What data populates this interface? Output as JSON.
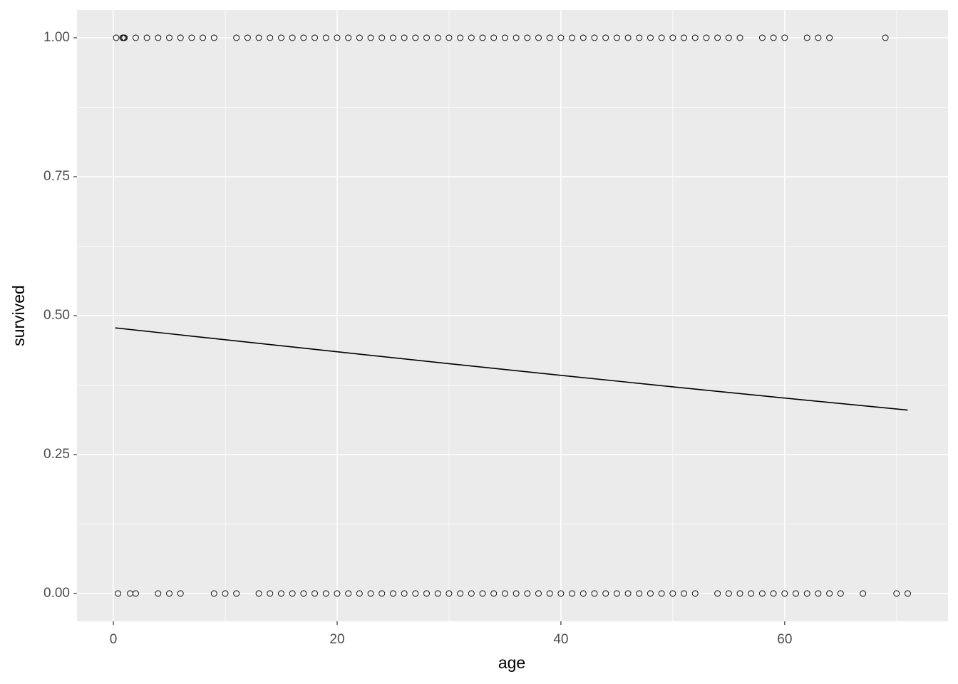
{
  "chart_data": {
    "type": "scatter",
    "x_label": "age",
    "y_label": "survived",
    "x": [
      0.25,
      0.83,
      0.92,
      1,
      2,
      3,
      4,
      5,
      6,
      7,
      8,
      9,
      11,
      12,
      13,
      14,
      15,
      16,
      17,
      18,
      19,
      20,
      21,
      22,
      23,
      24,
      25,
      26,
      27,
      28,
      29,
      30,
      31,
      32,
      33,
      34,
      35,
      36,
      37,
      38,
      39,
      40,
      41,
      42,
      43,
      44,
      45,
      46,
      47,
      48,
      49,
      50,
      51,
      52,
      53,
      54,
      55,
      56,
      58,
      59,
      60,
      62,
      63,
      64,
      69,
      0.42,
      1.5,
      2,
      4,
      5,
      6,
      9,
      10,
      11,
      13,
      14,
      15,
      16,
      17,
      18,
      19,
      20,
      21,
      22,
      23,
      24,
      25,
      26,
      27,
      28,
      29,
      30,
      31,
      32,
      33,
      34,
      35,
      36,
      37,
      38,
      39,
      40,
      41,
      42,
      43,
      44,
      45,
      46,
      47,
      48,
      49,
      50,
      51,
      52,
      54,
      55,
      56,
      57,
      58,
      59,
      60,
      61,
      62,
      63,
      64,
      65,
      67,
      70,
      71
    ],
    "values": [
      1,
      1,
      1,
      1,
      1,
      1,
      1,
      1,
      1,
      1,
      1,
      1,
      1,
      1,
      1,
      1,
      1,
      1,
      1,
      1,
      1,
      1,
      1,
      1,
      1,
      1,
      1,
      1,
      1,
      1,
      1,
      1,
      1,
      1,
      1,
      1,
      1,
      1,
      1,
      1,
      1,
      1,
      1,
      1,
      1,
      1,
      1,
      1,
      1,
      1,
      1,
      1,
      1,
      1,
      1,
      1,
      1,
      1,
      1,
      1,
      1,
      1,
      1,
      1,
      1,
      0,
      0,
      0,
      0,
      0,
      0,
      0,
      0,
      0,
      0,
      0,
      0,
      0,
      0,
      0,
      0,
      0,
      0,
      0,
      0,
      0,
      0,
      0,
      0,
      0,
      0,
      0,
      0,
      0,
      0,
      0,
      0,
      0,
      0,
      0,
      0,
      0,
      0,
      0,
      0,
      0,
      0,
      0,
      0,
      0,
      0,
      0,
      0,
      0,
      0,
      0,
      0,
      0,
      0,
      0,
      0,
      0,
      0,
      0,
      0,
      0,
      0,
      0,
      0
    ],
    "marker_color": "#000000",
    "line": {
      "x": [
        0.17,
        10,
        20,
        30,
        40,
        50,
        60,
        71
      ],
      "values": [
        0.478,
        0.4566,
        0.435,
        0.4136,
        0.3926,
        0.3719,
        0.3517,
        0.3301
      ],
      "color": "#000000"
    },
    "xlim": [
      -3.25,
      74.6
    ],
    "ylim": [
      -0.05,
      1.05
    ],
    "xticks": [
      0,
      20,
      40,
      60
    ],
    "yticks": [
      {
        "value": 0,
        "label": "0.00"
      },
      {
        "value": 0.25,
        "label": "0.25"
      },
      {
        "value": 0.5,
        "label": "0.50"
      },
      {
        "value": 0.75,
        "label": "0.75"
      },
      {
        "value": 1,
        "label": "1.00"
      }
    ],
    "grid": true
  }
}
